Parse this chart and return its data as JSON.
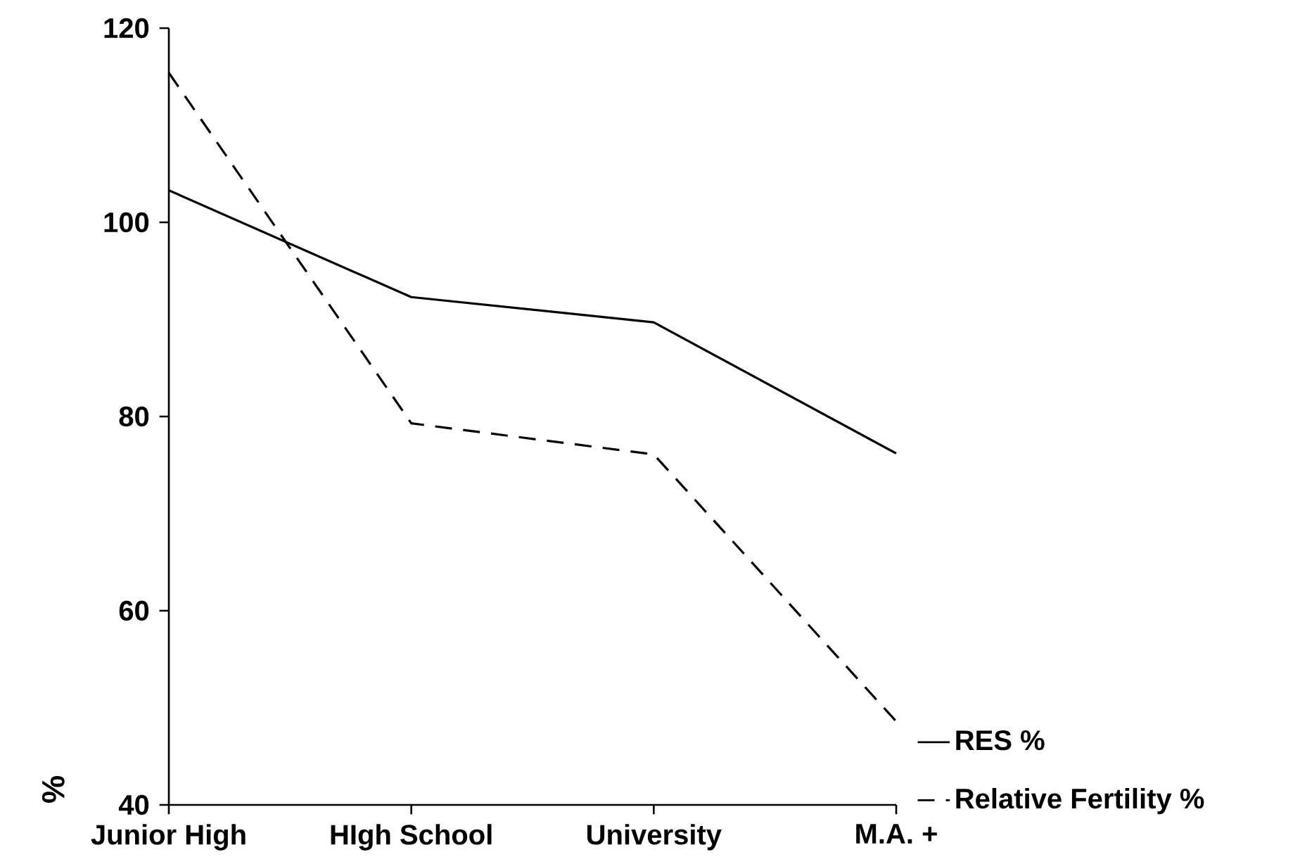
{
  "chart_data": {
    "type": "line",
    "ylabel": "%",
    "categories": [
      "Junior High",
      "HIgh School",
      "University",
      "M.A. +"
    ],
    "series": [
      {
        "name": "RES %",
        "color": "#000000",
        "line_style": "solid",
        "values": [
          103.3,
          92.3,
          89.7,
          76.2
        ]
      },
      {
        "name": "Relative Fertility %",
        "color": "#000000",
        "line_style": "dashed",
        "values": [
          115.4,
          79.3,
          76.1,
          48.6
        ]
      }
    ],
    "ylim": [
      40,
      120
    ],
    "yticks": [
      40,
      60,
      80,
      100,
      120
    ],
    "grid": false,
    "legend": "bottom right",
    "marker": "none"
  }
}
